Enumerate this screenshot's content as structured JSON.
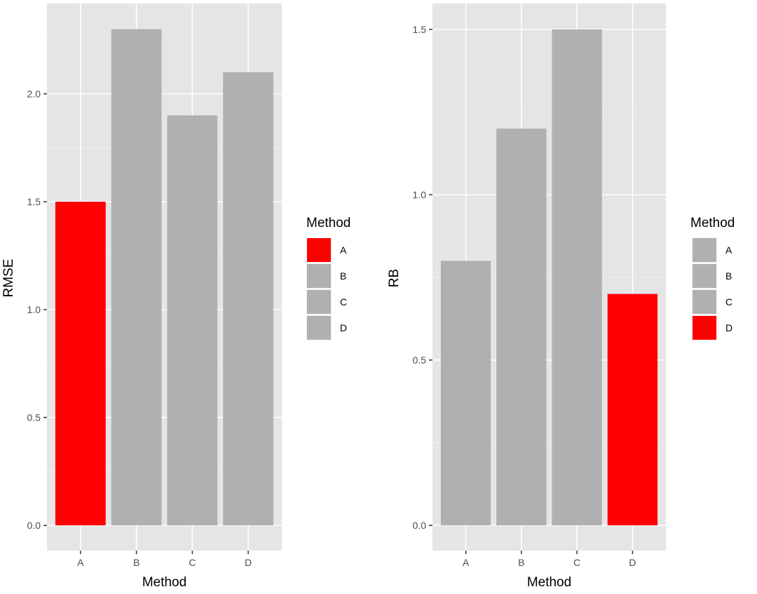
{
  "chart_data": [
    {
      "type": "bar",
      "categories": [
        "A",
        "B",
        "C",
        "D"
      ],
      "values": [
        1.5,
        2.3,
        1.9,
        2.1
      ],
      "bar_colors": [
        "#FF0000",
        "#B0B0B0",
        "#B0B0B0",
        "#B0B0B0"
      ],
      "xlabel": "Method",
      "ylabel": "RMSE",
      "ylim": [
        0,
        2.42
      ],
      "yticks": [
        0.0,
        0.5,
        1.0,
        1.5,
        2.0
      ],
      "ytick_labels": [
        "0.0",
        "0.5",
        "1.0",
        "1.5",
        "2.0"
      ],
      "grid": true,
      "legend": {
        "title": "Method",
        "placement": "right",
        "entries": [
          "A",
          "B",
          "C",
          "D"
        ]
      }
    },
    {
      "type": "bar",
      "categories": [
        "A",
        "B",
        "C",
        "D"
      ],
      "values": [
        0.8,
        1.2,
        1.5,
        0.7
      ],
      "bar_colors": [
        "#B0B0B0",
        "#B0B0B0",
        "#B0B0B0",
        "#FF0000"
      ],
      "xlabel": "Method",
      "ylabel": "RB",
      "ylim": [
        0,
        1.577
      ],
      "yticks": [
        0.0,
        0.5,
        1.0,
        1.5
      ],
      "ytick_labels": [
        "0.0",
        "0.5",
        "1.0",
        "1.5"
      ],
      "grid": true,
      "legend": {
        "title": "Method",
        "placement": "right",
        "entries": [
          "A",
          "B",
          "C",
          "D"
        ]
      }
    }
  ],
  "colors": {
    "panel_bg": "#E5E5E5",
    "grid": "#FFFFFF",
    "highlight": "#FF0000",
    "default": "#B0B0B0"
  }
}
